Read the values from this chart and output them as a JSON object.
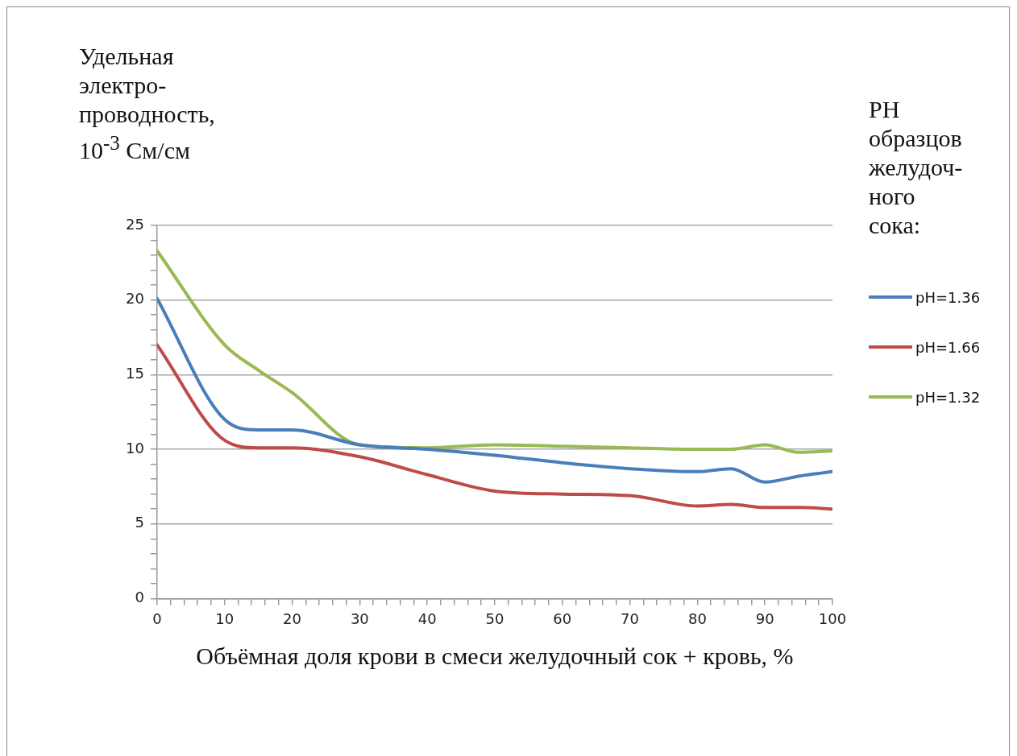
{
  "chart_data": {
    "type": "line",
    "xlabel": "Объёмная доля крови в смеси желудочный сок + кровь, %",
    "ylabel": "Удельная\nэлектро-\nпроводность,\n10$^{-3}$ См/см",
    "legend_title": "РН\nобразцов\nжелудоч-\nного\nсока:",
    "x": [
      0,
      10,
      15,
      20,
      30,
      40,
      50,
      60,
      70,
      80,
      85,
      90,
      95,
      100
    ],
    "series": [
      {
        "name": "pH=1.36",
        "color": "#4a7ebb",
        "values": [
          20.1,
          12.0,
          11.3,
          11.3,
          10.3,
          10.0,
          9.6,
          9.1,
          8.7,
          8.5,
          8.7,
          7.8,
          8.2,
          8.5
        ]
      },
      {
        "name": "pH=1.66",
        "color": "#be4b48",
        "values": [
          17.0,
          10.6,
          10.1,
          10.1,
          9.5,
          8.3,
          7.2,
          7.0,
          6.9,
          6.2,
          6.3,
          6.1,
          6.1,
          6.0
        ]
      },
      {
        "name": "pH=1.32",
        "color": "#98b954",
        "values": [
          23.3,
          17.0,
          15.3,
          13.8,
          10.3,
          10.1,
          10.3,
          10.2,
          10.1,
          10.0,
          10.0,
          10.3,
          9.8,
          9.9
        ]
      }
    ],
    "xlim": [
      0,
      100
    ],
    "xticks": [
      0,
      {
        "value": 2,
        "label": null
      },
      {
        "value": 4,
        "label": null
      },
      {
        "value": 6,
        "label": null
      },
      {
        "value": 8,
        "label": null
      },
      10,
      {
        "value": 12,
        "label": null
      },
      {
        "value": 14,
        "label": null
      },
      {
        "value": 16,
        "label": null
      },
      {
        "value": 18,
        "label": null
      },
      20,
      {
        "value": 22,
        "label": null
      },
      {
        "value": 24,
        "label": null
      },
      {
        "value": 26,
        "label": null
      },
      {
        "value": 28,
        "label": null
      },
      30,
      {
        "value": 32,
        "label": null
      },
      {
        "value": 34,
        "label": null
      },
      {
        "value": 36,
        "label": null
      },
      {
        "value": 38,
        "label": null
      },
      40,
      {
        "value": 42,
        "label": null
      },
      {
        "value": 44,
        "label": null
      },
      {
        "value": 46,
        "label": null
      },
      {
        "value": 48,
        "label": null
      },
      50,
      {
        "value": 52,
        "label": null
      },
      {
        "value": 54,
        "label": null
      },
      {
        "value": 56,
        "label": null
      },
      {
        "value": 58,
        "label": null
      },
      60,
      {
        "value": 62,
        "label": null
      },
      {
        "value": 64,
        "label": null
      },
      {
        "value": 66,
        "label": null
      },
      {
        "value": 68,
        "label": null
      },
      70,
      {
        "value": 72,
        "label": null
      },
      {
        "value": 74,
        "label": null
      },
      {
        "value": 76,
        "label": null
      },
      {
        "value": 78,
        "label": null
      },
      80,
      {
        "value": 82,
        "label": null
      },
      {
        "value": 84,
        "label": null
      },
      {
        "value": 86,
        "label": null
      },
      {
        "value": 88,
        "label": null
      },
      90,
      {
        "value": 92,
        "label": null
      },
      {
        "value": 94,
        "label": null
      },
      {
        "value": 96,
        "label": null
      },
      {
        "value": 98,
        "label": null
      },
      100
    ],
    "ylim": [
      0,
      25
    ],
    "yticks": [
      0,
      {
        "value": 1,
        "label": null
      },
      {
        "value": 2,
        "label": null
      },
      {
        "value": 3,
        "label": null
      },
      {
        "value": 4,
        "label": null
      },
      5,
      {
        "value": 6,
        "label": null
      },
      {
        "value": 7,
        "label": null
      },
      {
        "value": 8,
        "label": null
      },
      {
        "value": 9,
        "label": null
      },
      10,
      {
        "value": 11,
        "label": null
      },
      {
        "value": 12,
        "label": null
      },
      {
        "value": 13,
        "label": null
      },
      {
        "value": 14,
        "label": null
      },
      15,
      {
        "value": 16,
        "label": null
      },
      {
        "value": 17,
        "label": null
      },
      {
        "value": 18,
        "label": null
      },
      {
        "value": 19,
        "label": null
      },
      20,
      {
        "value": 21,
        "label": null
      },
      {
        "value": 22,
        "label": null
      },
      {
        "value": 23,
        "label": null
      },
      {
        "value": 24,
        "label": null
      },
      25
    ],
    "grid": "y",
    "legend": "right",
    "marker": "none",
    "line_style": "solid"
  }
}
